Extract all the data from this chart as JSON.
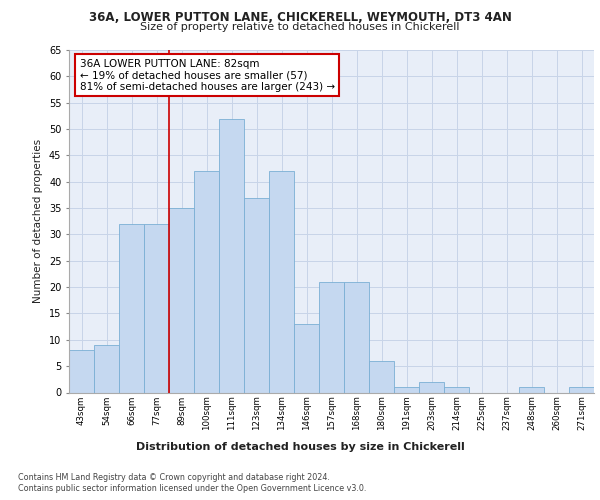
{
  "title1": "36A, LOWER PUTTON LANE, CHICKERELL, WEYMOUTH, DT3 4AN",
  "title2": "Size of property relative to detached houses in Chickerell",
  "xlabel": "Distribution of detached houses by size in Chickerell",
  "ylabel": "Number of detached properties",
  "categories": [
    "43sqm",
    "54sqm",
    "66sqm",
    "77sqm",
    "89sqm",
    "100sqm",
    "111sqm",
    "123sqm",
    "134sqm",
    "146sqm",
    "157sqm",
    "168sqm",
    "180sqm",
    "191sqm",
    "203sqm",
    "214sqm",
    "225sqm",
    "237sqm",
    "248sqm",
    "260sqm",
    "271sqm"
  ],
  "values": [
    8,
    9,
    32,
    32,
    35,
    42,
    52,
    37,
    42,
    13,
    21,
    21,
    6,
    1,
    2,
    1,
    0,
    0,
    1,
    0,
    1
  ],
  "bar_color": "#c5d8f0",
  "bar_edge_color": "#7aafd4",
  "grid_color": "#c8d4e8",
  "background_color": "#e8eef8",
  "annotation_text": "36A LOWER PUTTON LANE: 82sqm\n← 19% of detached houses are smaller (57)\n81% of semi-detached houses are larger (243) →",
  "annotation_box_color": "#ffffff",
  "annotation_box_edge": "#cc0000",
  "footer1": "Contains HM Land Registry data © Crown copyright and database right 2024.",
  "footer2": "Contains public sector information licensed under the Open Government Licence v3.0.",
  "ylim": [
    0,
    65
  ],
  "yticks": [
    0,
    5,
    10,
    15,
    20,
    25,
    30,
    35,
    40,
    45,
    50,
    55,
    60,
    65
  ]
}
